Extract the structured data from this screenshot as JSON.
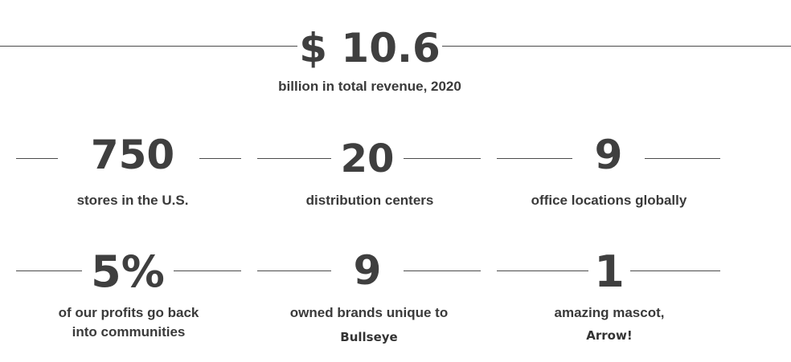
{
  "hero": {
    "value": "$ 10.6",
    "label": "billion in total revenue, 2020"
  },
  "stats": [
    {
      "value": "750",
      "label": "stores in the U.S."
    },
    {
      "value": "20",
      "label": "distribution centers"
    },
    {
      "value": "9",
      "label": "office locations globally"
    },
    {
      "value": "5%",
      "label_line1": "of our profits go back",
      "label_line2": "into communities"
    },
    {
      "value": "9",
      "label_line1": "owned brands unique to",
      "label_line2": "Bullseye"
    },
    {
      "value": "1",
      "label_line1": "amazing mascot,",
      "label_line2": "Arrow!"
    }
  ],
  "colors": {
    "text": "#3d3d3d",
    "rule": "#4a4a4a",
    "background": "#ffffff"
  }
}
